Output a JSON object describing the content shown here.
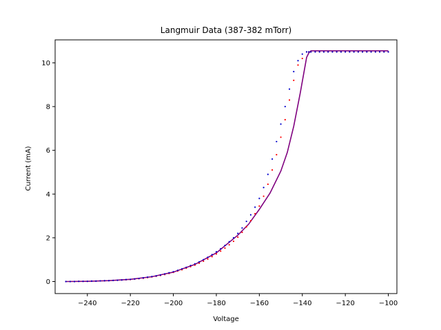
{
  "chart_data": {
    "type": "scatter",
    "title": "Langmuir Data (387-382 mTorr)",
    "xlabel": "Voltage",
    "ylabel": "Current (mA)",
    "xlim": [
      -255,
      -96
    ],
    "ylim": [
      -0.55,
      11.05
    ],
    "x_ticks": [
      -240,
      -220,
      -200,
      -180,
      -160,
      -140,
      -120,
      -100
    ],
    "y_ticks": [
      0,
      2,
      4,
      6,
      8,
      10
    ],
    "x_tick_labels": [
      "−240",
      "−220",
      "−200",
      "−180",
      "−160",
      "−140",
      "−120",
      "−100"
    ],
    "y_tick_labels": [
      "0",
      "2",
      "4",
      "6",
      "8",
      "10"
    ],
    "grid": false,
    "colors": {
      "series_red": "#ff0000",
      "series_blue": "#0000cc",
      "fit_line": "#7f007f"
    },
    "series": [
      {
        "style": "dots",
        "color": "#ff0000",
        "x": [
          -250,
          -248,
          -246,
          -244,
          -242,
          -240,
          -238,
          -236,
          -234,
          -232,
          -230,
          -228,
          -226,
          -224,
          -222,
          -220,
          -218,
          -216,
          -214,
          -212,
          -210,
          -208,
          -206,
          -204,
          -202,
          -200,
          -198,
          -196,
          -194,
          -192,
          -190,
          -188,
          -186,
          -184,
          -182,
          -180,
          -178,
          -176,
          -174,
          -172,
          -170,
          -168,
          -166,
          -164,
          -162,
          -160,
          -158,
          -156,
          -154,
          -152,
          -150,
          -148,
          -146,
          -144,
          -142,
          -140,
          -138,
          -137,
          -136,
          -134,
          -132,
          -130,
          -128,
          -126,
          -124,
          -122,
          -120,
          -118,
          -116,
          -114,
          -112,
          -110,
          -108,
          -106,
          -104,
          -102,
          -100
        ],
        "y": [
          0.0,
          0.0,
          0.0,
          0.01,
          0.01,
          0.01,
          0.02,
          0.02,
          0.03,
          0.03,
          0.04,
          0.05,
          0.06,
          0.07,
          0.08,
          0.09,
          0.11,
          0.13,
          0.15,
          0.18,
          0.21,
          0.24,
          0.28,
          0.32,
          0.37,
          0.42,
          0.48,
          0.54,
          0.61,
          0.68,
          0.75,
          0.84,
          0.93,
          1.03,
          1.14,
          1.26,
          1.39,
          1.53,
          1.68,
          1.84,
          2.03,
          2.25,
          2.5,
          2.78,
          3.1,
          3.45,
          3.9,
          4.45,
          5.1,
          5.8,
          6.6,
          7.4,
          8.3,
          9.2,
          9.9,
          10.2,
          10.5,
          10.5,
          10.5,
          10.5,
          10.5,
          10.5,
          10.5,
          10.5,
          10.5,
          10.5,
          10.5,
          10.5,
          10.5,
          10.5,
          10.5,
          10.5,
          10.5,
          10.5,
          10.5,
          10.5,
          10.5
        ]
      },
      {
        "style": "dots",
        "color": "#0000cc",
        "x": [
          -250,
          -248,
          -246,
          -244,
          -242,
          -240,
          -238,
          -236,
          -234,
          -232,
          -230,
          -228,
          -226,
          -224,
          -222,
          -220,
          -218,
          -216,
          -214,
          -212,
          -210,
          -208,
          -206,
          -204,
          -202,
          -200,
          -198,
          -196,
          -194,
          -192,
          -190,
          -188,
          -186,
          -184,
          -182,
          -180,
          -178,
          -176,
          -174,
          -172,
          -170,
          -168,
          -166,
          -164,
          -162,
          -160,
          -158,
          -156,
          -154,
          -152,
          -150,
          -148,
          -146,
          -144,
          -142,
          -140,
          -138,
          -137,
          -136,
          -134,
          -132,
          -130,
          -128,
          -126,
          -124,
          -122,
          -120,
          -118,
          -116,
          -114,
          -112,
          -110,
          -108,
          -106,
          -104,
          -102,
          -100
        ],
        "y": [
          0.0,
          0.0,
          0.0,
          0.01,
          0.01,
          0.01,
          0.02,
          0.02,
          0.03,
          0.04,
          0.04,
          0.05,
          0.06,
          0.07,
          0.09,
          0.1,
          0.12,
          0.14,
          0.17,
          0.2,
          0.23,
          0.26,
          0.3,
          0.35,
          0.4,
          0.45,
          0.51,
          0.58,
          0.65,
          0.73,
          0.81,
          0.9,
          1.0,
          1.11,
          1.23,
          1.36,
          1.5,
          1.65,
          1.82,
          2.0,
          2.2,
          2.45,
          2.75,
          3.05,
          3.4,
          3.8,
          4.3,
          4.9,
          5.6,
          6.4,
          7.2,
          8.0,
          8.8,
          9.6,
          10.1,
          10.4,
          10.5,
          10.5,
          10.5,
          10.5,
          10.5,
          10.5,
          10.5,
          10.5,
          10.5,
          10.5,
          10.5,
          10.5,
          10.5,
          10.5,
          10.5,
          10.5,
          10.5,
          10.5,
          10.5,
          10.5,
          10.5
        ]
      },
      {
        "style": "line",
        "color": "#7f007f",
        "x": [
          -250,
          -240,
          -230,
          -220,
          -210,
          -200,
          -190,
          -180,
          -170,
          -165,
          -160,
          -155,
          -150,
          -147,
          -144,
          -141,
          -139,
          -138,
          -137,
          -136,
          -130,
          -120,
          -110,
          -100
        ],
        "y": [
          0.0,
          0.01,
          0.04,
          0.1,
          0.22,
          0.43,
          0.78,
          1.31,
          2.12,
          2.62,
          3.3,
          4.05,
          5.05,
          5.9,
          7.1,
          8.6,
          9.7,
          10.25,
          10.45,
          10.55,
          10.55,
          10.55,
          10.55,
          10.55
        ]
      }
    ]
  }
}
